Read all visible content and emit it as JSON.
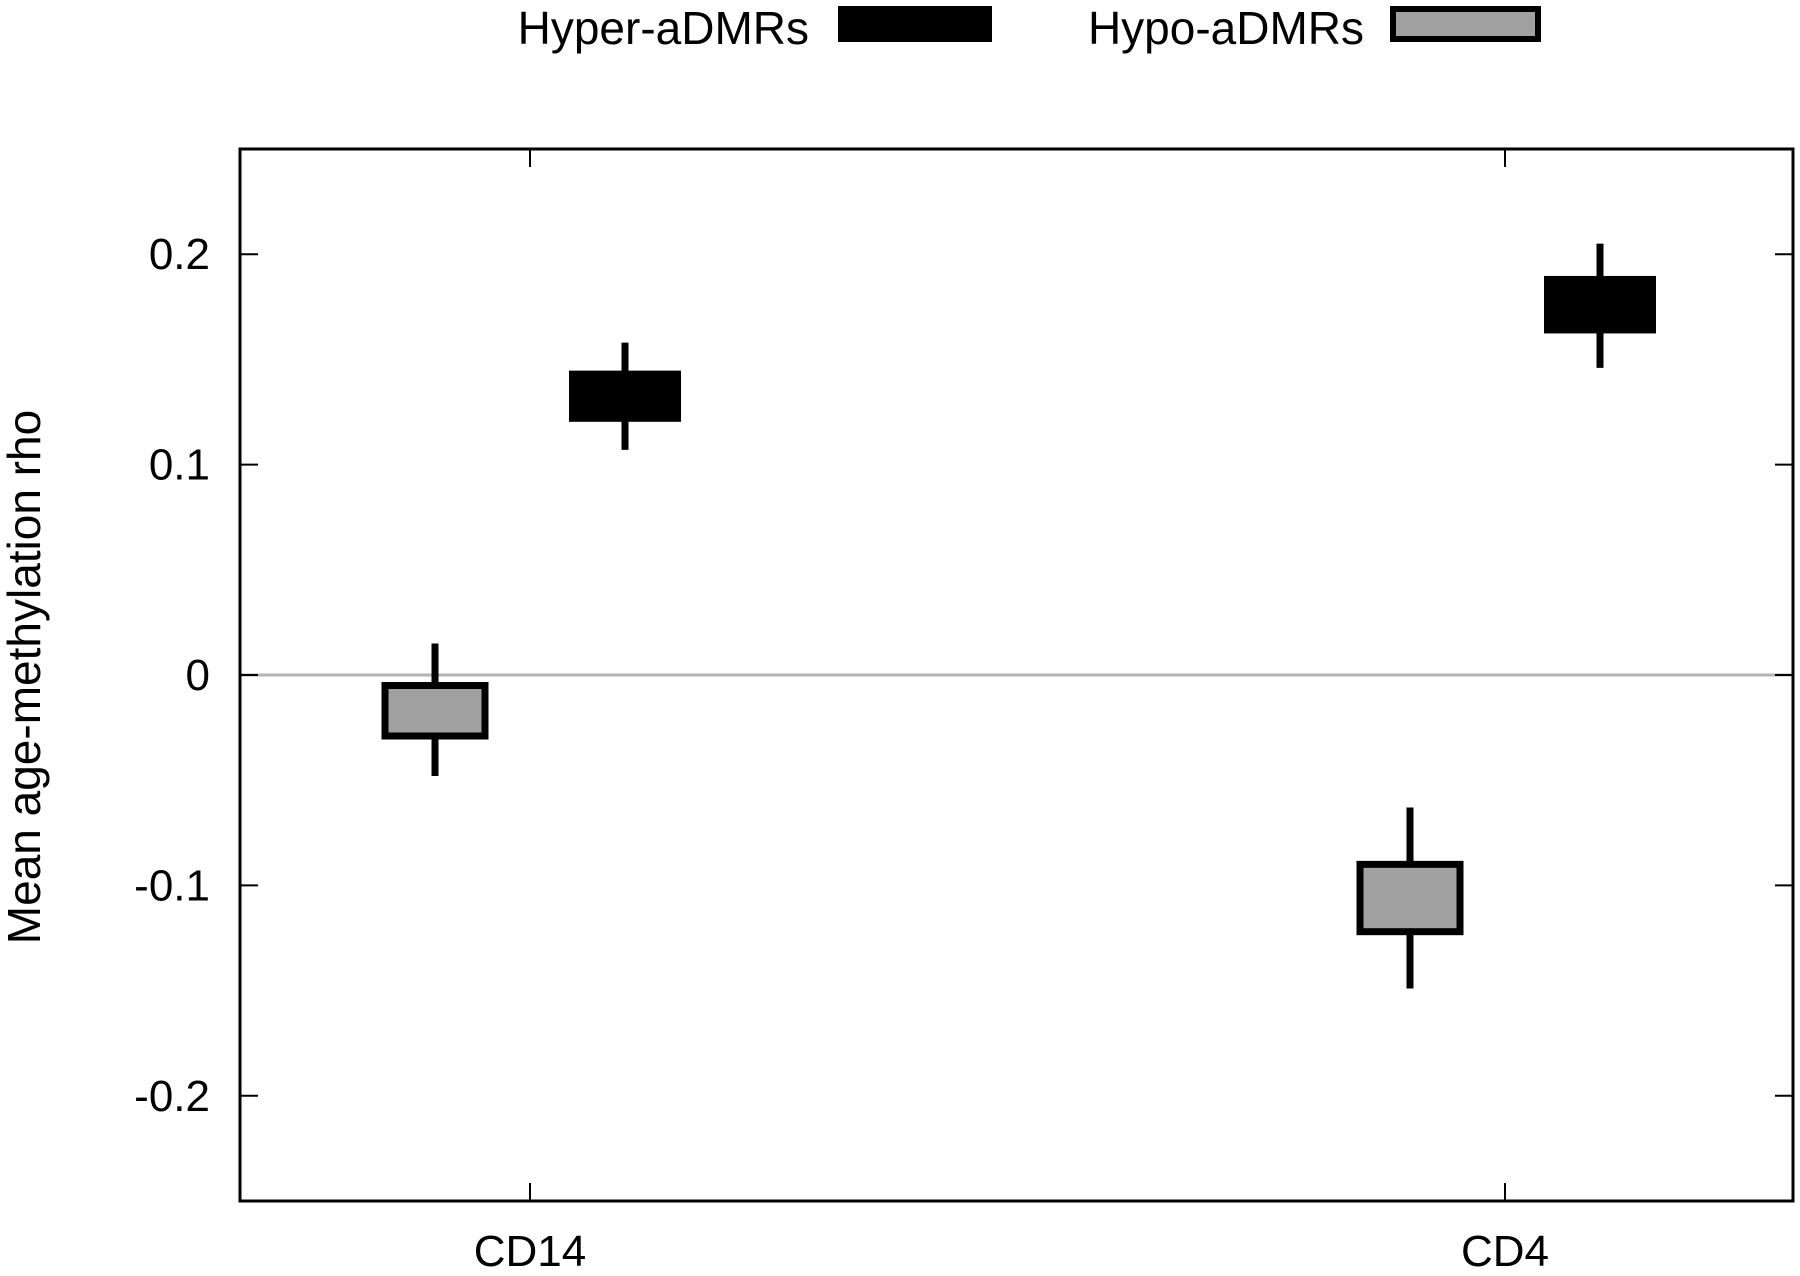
{
  "chart_data": {
    "type": "candlestick",
    "title": "",
    "xlabel": "",
    "ylabel": "Mean age-methylation rho",
    "ylim": [
      -0.25,
      0.25
    ],
    "yticks": [
      {
        "value": -0.2,
        "label": "-0.2"
      },
      {
        "value": -0.1,
        "label": "-0.1"
      },
      {
        "value": 0,
        "label": "0"
      },
      {
        "value": 0.1,
        "label": "0.1"
      },
      {
        "value": 0.2,
        "label": "0.2"
      }
    ],
    "zero_line": true,
    "grid": false,
    "legend_position": "top",
    "categories": [
      "CD14",
      "CD4"
    ],
    "series": [
      {
        "name": "Hyper-aDMRs",
        "fill": "#000000",
        "border": "#000000",
        "data": [
          {
            "category": "CD14",
            "whisker_low": 0.107,
            "box_low": 0.122,
            "box_high": 0.143,
            "whisker_high": 0.158
          },
          {
            "category": "CD4",
            "whisker_low": 0.146,
            "box_low": 0.164,
            "box_high": 0.188,
            "whisker_high": 0.205
          }
        ]
      },
      {
        "name": "Hypo-aDMRs",
        "fill": "#a0a0a0",
        "border": "#000000",
        "data": [
          {
            "category": "CD14",
            "whisker_low": -0.048,
            "box_low": -0.029,
            "box_high": -0.005,
            "whisker_high": 0.015
          },
          {
            "category": "CD4",
            "whisker_low": -0.149,
            "box_low": -0.122,
            "box_high": -0.09,
            "whisker_high": -0.063
          }
        ]
      }
    ]
  }
}
